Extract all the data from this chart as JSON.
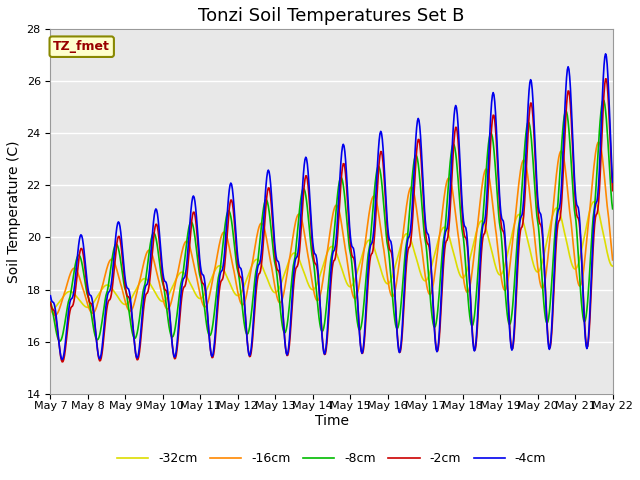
{
  "title": "Tonzi Soil Temperatures Set B",
  "xlabel": "Time",
  "ylabel": "Soil Temperature (C)",
  "ylim": [
    14,
    28
  ],
  "x_tick_labels": [
    "May 7",
    "May 8",
    "May 9",
    "May 10",
    "May 11",
    "May 12",
    "May 13",
    "May 14",
    "May 15",
    "May 16",
    "May 17",
    "May 18",
    "May 19",
    "May 20",
    "May 21",
    "May 22"
  ],
  "annotation_text": "TZ_fmet",
  "annotation_bg": "#ffffcc",
  "annotation_border": "#888800",
  "annotation_color": "#990000",
  "series": [
    {
      "label": "-2cm",
      "color": "#cc0000"
    },
    {
      "label": "-4cm",
      "color": "#0000ee"
    },
    {
      "label": "-8cm",
      "color": "#00bb00"
    },
    {
      "label": "-16cm",
      "color": "#ff8800"
    },
    {
      "label": "-32cm",
      "color": "#dddd00"
    }
  ],
  "background_color": "#ffffff",
  "plot_bg_color": "#e8e8e8",
  "grid_color": "#ffffff",
  "title_fontsize": 13,
  "axis_label_fontsize": 10,
  "tick_fontsize": 8
}
